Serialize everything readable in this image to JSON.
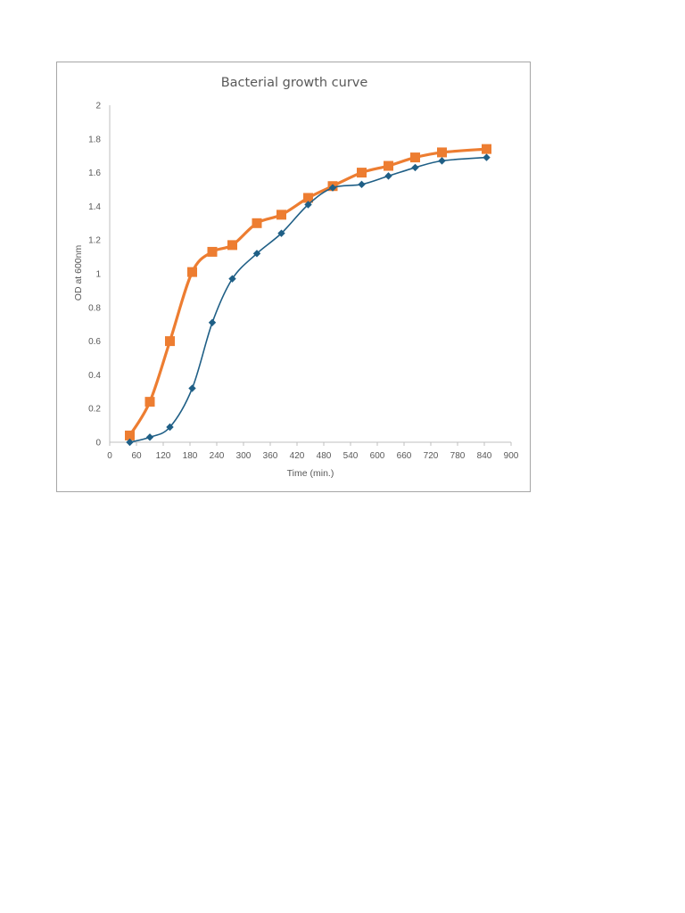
{
  "chart_data": {
    "type": "scatter",
    "title": "Bacterial growth curve",
    "xlabel": "Time (min.)",
    "ylabel": "OD at 600nm",
    "xlim": [
      0,
      900
    ],
    "ylim": [
      0,
      2
    ],
    "x_ticks": [
      0,
      60,
      120,
      180,
      240,
      300,
      360,
      420,
      480,
      540,
      600,
      660,
      720,
      780,
      840,
      900
    ],
    "y_ticks": [
      "0",
      "0.2",
      "0.4",
      "0.6",
      "0.8",
      "1",
      "1.2",
      "1.4",
      "1.6",
      "1.8",
      "2"
    ],
    "grid": false,
    "legend": "none",
    "series": [
      {
        "color": "#ed7d31",
        "marker": "square",
        "smooth": true,
        "x": [
          45,
          90,
          135,
          185,
          230,
          275,
          330,
          385,
          445,
          500,
          565,
          625,
          685,
          745,
          845
        ],
        "y": [
          0.04,
          0.24,
          0.6,
          1.01,
          1.13,
          1.17,
          1.3,
          1.35,
          1.45,
          1.52,
          1.6,
          1.64,
          1.69,
          1.72,
          1.74
        ]
      },
      {
        "color": "#1f5f86",
        "marker": "diamond",
        "smooth": true,
        "x": [
          45,
          90,
          135,
          185,
          230,
          275,
          330,
          385,
          445,
          500,
          565,
          625,
          685,
          745,
          845
        ],
        "y": [
          0.0,
          0.03,
          0.09,
          0.32,
          0.71,
          0.97,
          1.12,
          1.24,
          1.41,
          1.51,
          1.53,
          1.58,
          1.63,
          1.67,
          1.69
        ]
      }
    ]
  }
}
